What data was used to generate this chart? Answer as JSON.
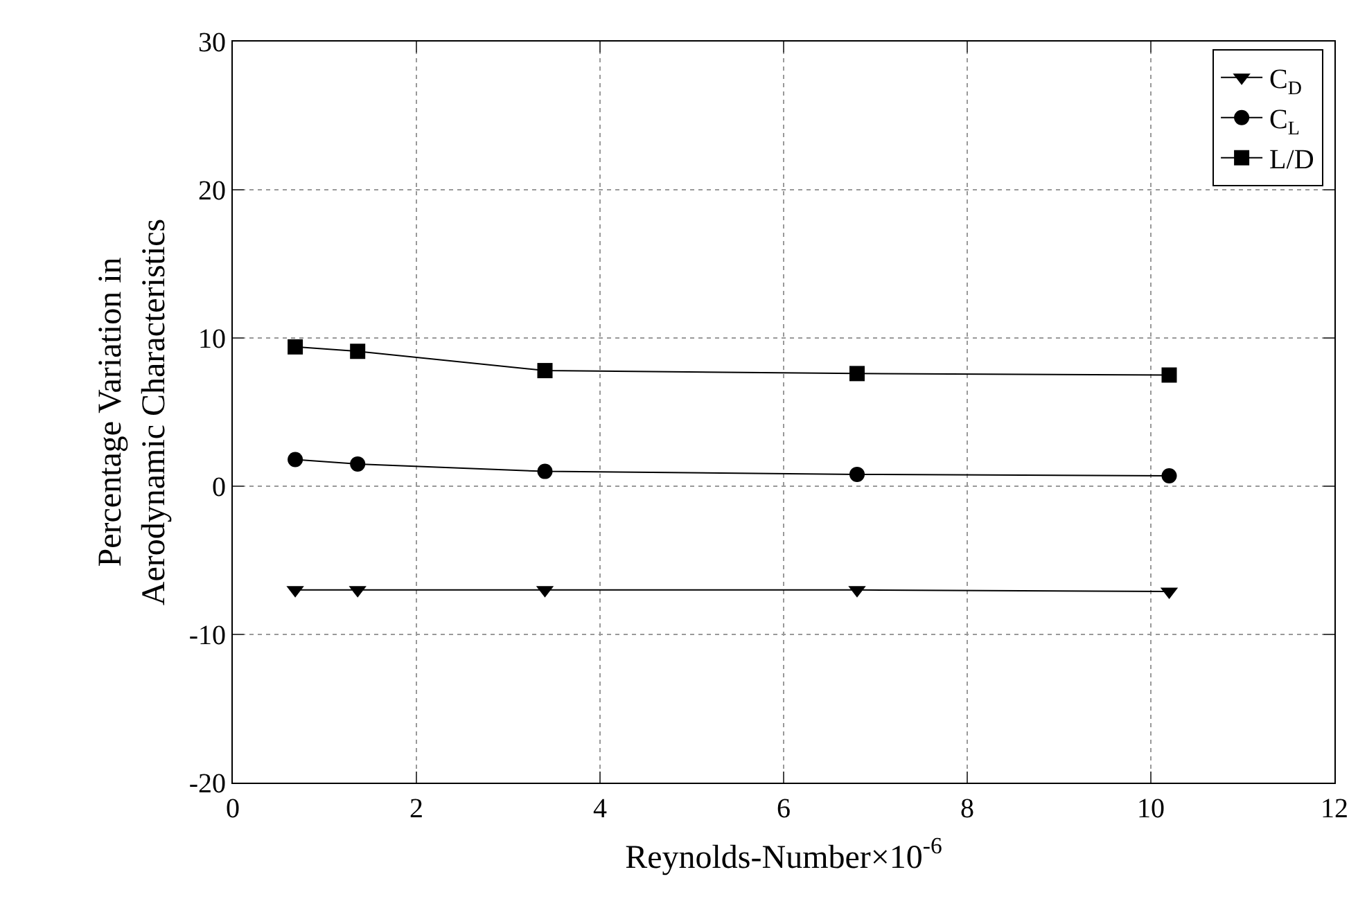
{
  "chart_data": {
    "type": "line",
    "xlabel": "Reynolds-Number×10$^{-6}$",
    "ylabel": "Percentage Variation in\nAerodynamic Characteristics",
    "x": [
      0.68,
      1.36,
      3.4,
      6.8,
      10.2
    ],
    "series": [
      {
        "name": "C$_{D}$",
        "color": "#000000",
        "marker": "triangle",
        "values": [
          -7.0,
          -7.0,
          -7.0,
          -7.0,
          -7.1
        ]
      },
      {
        "name": "C$_{L}$",
        "color": "#000000",
        "marker": "circle",
        "values": [
          1.8,
          1.5,
          1.0,
          0.8,
          0.7
        ]
      },
      {
        "name": "L/D",
        "color": "#000000",
        "marker": "square",
        "values": [
          9.4,
          9.1,
          7.8,
          7.6,
          7.5
        ]
      }
    ],
    "xlim": [
      0,
      12
    ],
    "xticks": [
      0,
      2,
      4,
      6,
      8,
      10,
      12
    ],
    "ylim": [
      -20,
      30
    ],
    "yticks": [
      -20,
      -10,
      0,
      10,
      20,
      30
    ],
    "grid": true,
    "legend": "top right",
    "line_style": "solid"
  }
}
